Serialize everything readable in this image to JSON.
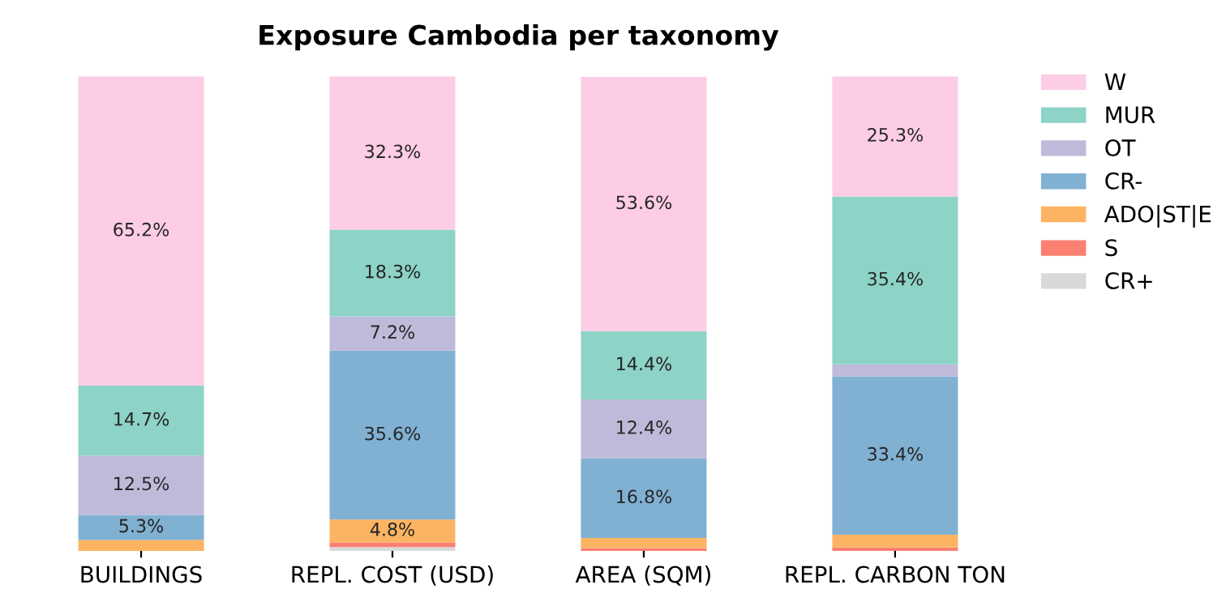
{
  "chart_data": {
    "type": "bar",
    "stacked": true,
    "title": "Exposure Cambodia per taxonomy",
    "categories": [
      "BUILDINGS",
      "REPL. COST (USD)",
      "AREA (SQM)",
      "REPL. CARBON TON"
    ],
    "legend": "right",
    "series": [
      {
        "name": "CR+",
        "color": "#d9d9d9",
        "values": [
          0,
          0.8,
          0,
          0
        ],
        "value_labels": [
          null,
          null,
          null,
          null
        ]
      },
      {
        "name": "S",
        "color": "#fb8072",
        "values": [
          0,
          1.0,
          0.6,
          0.7
        ],
        "value_labels": [
          null,
          null,
          null,
          null
        ]
      },
      {
        "name": "ADO|ST|E",
        "color": "#fdb462",
        "values": [
          2.3,
          4.8,
          2.1,
          2.7
        ],
        "value_labels": [
          null,
          "4.8%",
          null,
          null
        ]
      },
      {
        "name": "CR-",
        "color": "#80b1d3",
        "values": [
          5.3,
          35.6,
          16.8,
          33.4
        ],
        "value_labels": [
          "5.3%",
          "35.6%",
          "16.8%",
          "33.4%"
        ]
      },
      {
        "name": "OT",
        "color": "#bebada",
        "values": [
          12.5,
          7.2,
          12.4,
          2.5
        ],
        "value_labels": [
          "12.5%",
          "7.2%",
          "12.4%",
          null
        ]
      },
      {
        "name": "MUR",
        "color": "#8dd3c7",
        "values": [
          14.7,
          18.3,
          14.4,
          35.4
        ],
        "value_labels": [
          "14.7%",
          "18.3%",
          "14.4%",
          "35.4%"
        ]
      },
      {
        "name": "W",
        "color": "#fccde5",
        "values": [
          65.2,
          32.3,
          53.6,
          25.3
        ],
        "value_labels": [
          "65.2%",
          "32.3%",
          "53.6%",
          "25.3%"
        ]
      }
    ]
  }
}
